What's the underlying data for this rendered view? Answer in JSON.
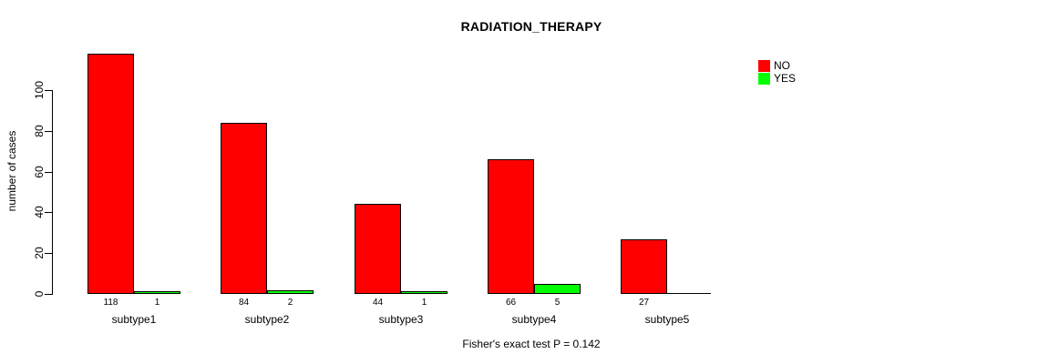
{
  "chart_data": {
    "type": "bar",
    "title": "RADIATION_THERAPY",
    "ylabel": "number of cases",
    "xlabel": "",
    "caption": "Fisher's exact test P = 0.142",
    "categories": [
      "subtype1",
      "subtype2",
      "subtype3",
      "subtype4",
      "subtype5"
    ],
    "series": [
      {
        "name": "NO",
        "color": "#ff0000",
        "values": [
          118,
          84,
          44,
          66,
          27
        ]
      },
      {
        "name": "YES",
        "color": "#00ff00",
        "values": [
          1,
          2,
          1,
          5,
          0
        ]
      }
    ],
    "bar_count_labels": {
      "NO": [
        "118",
        "84",
        "44",
        "66",
        "27"
      ],
      "YES": [
        "1",
        "2",
        "1",
        "5",
        ""
      ]
    },
    "yticks": [
      0,
      20,
      40,
      60,
      80,
      100
    ],
    "ylim": [
      0,
      118
    ],
    "grid": false,
    "legend_position": "right-inside",
    "bar_border_color": "#000000",
    "background_color": "#ffffff"
  }
}
